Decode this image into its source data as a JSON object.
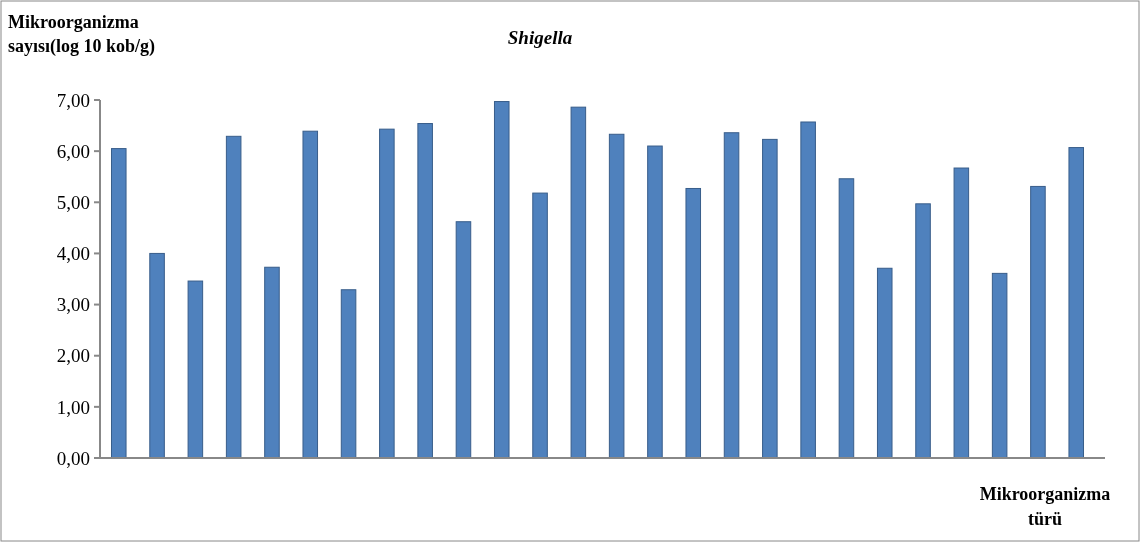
{
  "chart_data": {
    "type": "bar",
    "title": "Shigella",
    "ylabel": "Mikroorganizma sayısı(log 10 kob/g)",
    "xlabel": "Mikroorganizma türü",
    "categories": [
      null,
      null,
      null,
      null,
      null,
      null,
      null,
      null,
      null,
      null,
      null,
      null,
      null,
      null,
      null,
      null,
      null,
      null,
      null,
      null,
      null,
      null,
      null,
      null,
      null,
      null
    ],
    "values": [
      6.05,
      4.0,
      3.46,
      6.29,
      3.73,
      6.39,
      3.29,
      6.43,
      6.54,
      4.62,
      6.97,
      5.18,
      6.86,
      6.33,
      6.1,
      5.27,
      6.36,
      6.23,
      6.57,
      5.46,
      3.71,
      4.97,
      5.67,
      3.61,
      5.31,
      6.07
    ],
    "color": "#4f81bd",
    "ylim": [
      0,
      7
    ],
    "yticks": [
      {
        "value": 0,
        "label": "0,00"
      },
      {
        "value": 1,
        "label": "1,00"
      },
      {
        "value": 2,
        "label": "2,00"
      },
      {
        "value": 3,
        "label": "3,00"
      },
      {
        "value": 4,
        "label": "4,00"
      },
      {
        "value": 5,
        "label": "5,00"
      },
      {
        "value": 6,
        "label": "6,00"
      },
      {
        "value": 7,
        "label": "7,00"
      }
    ],
    "grid": false
  }
}
